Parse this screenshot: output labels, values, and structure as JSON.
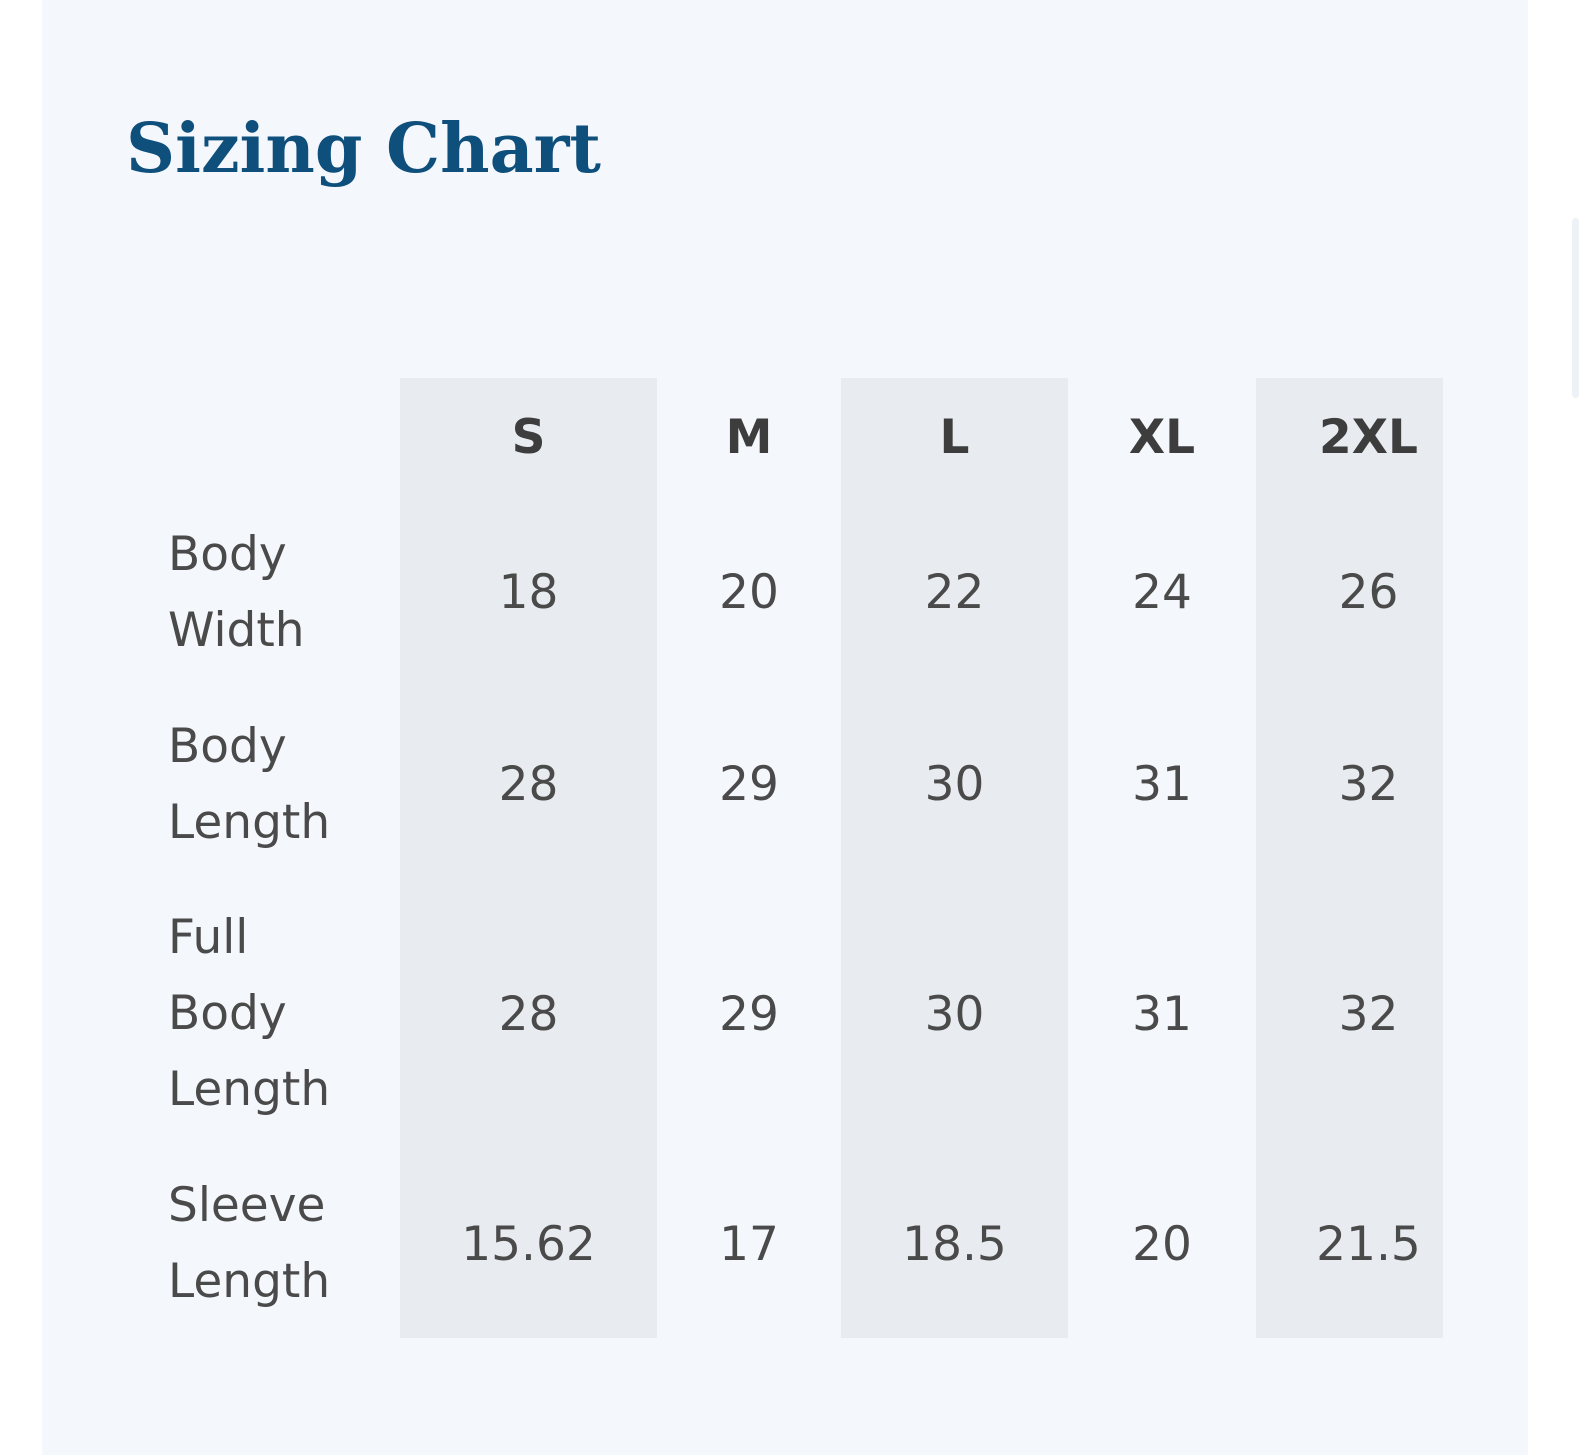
{
  "title": "Sizing Chart",
  "sizes": [
    "S",
    "M",
    "L",
    "XL",
    "2XL"
  ],
  "rows": [
    {
      "label": "Body\nWidth",
      "values": [
        "18",
        "20",
        "22",
        "24",
        "26"
      ]
    },
    {
      "label": "Body\nLength",
      "values": [
        "28",
        "29",
        "30",
        "31",
        "32"
      ]
    },
    {
      "label": "Full\nBody\nLength",
      "values": [
        "28",
        "29",
        "30",
        "31",
        "32"
      ]
    },
    {
      "label": "Sleeve\nLength",
      "values": [
        "15.62",
        "17",
        "18.5",
        "20",
        "21.5"
      ]
    }
  ],
  "colors": {
    "title": "#0e4f7c",
    "panel_background": "#f4f7fc",
    "shaded_column": "#e8ecf0",
    "text": "#4a4a4a"
  }
}
